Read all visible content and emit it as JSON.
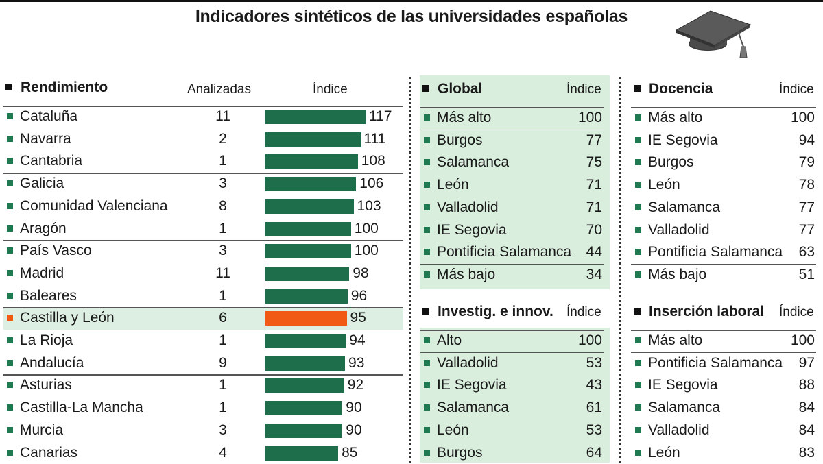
{
  "title": "Indicadores sintéticos de las universidades españolas",
  "rendimiento": {
    "header": "Rendimiento",
    "col_analizadas": "Analizadas",
    "col_indice": "Índice"
  },
  "chart_data": {
    "type": "bar",
    "orientation": "horizontal",
    "title": "Rendimiento",
    "categories": [
      "Cataluña",
      "Navarra",
      "Cantabria",
      "Galicia",
      "Comunidad Valenciana",
      "Aragón",
      "País Vasco",
      "Madrid",
      "Baleares",
      "Castilla y León",
      "La Rioja",
      "Andalucía",
      "Asturias",
      "Castilla-La Mancha",
      "Murcia",
      "Canarias"
    ],
    "analizadas": [
      "11",
      "2",
      "1",
      "3",
      "8",
      "1",
      "3",
      "11",
      "1",
      "6",
      "1",
      "9",
      "1",
      "1",
      "3",
      "4"
    ],
    "values": [
      117,
      111,
      108,
      106,
      103,
      100,
      100,
      98,
      96,
      95,
      94,
      93,
      92,
      90,
      90,
      85
    ],
    "highlight": "Castilla y León",
    "colors": {
      "bar": "#1f6e4b",
      "highlight_bar": "#f05a14",
      "row_highlight": "#dcefe2",
      "marker": "#1f7a52",
      "panel_bg": "#d9eedd"
    }
  },
  "global": {
    "header": "Global",
    "col": "Índice",
    "rows": [
      {
        "name": "Más alto",
        "value": "100"
      },
      {
        "name": "Burgos",
        "value": "77"
      },
      {
        "name": "Salamanca",
        "value": "75"
      },
      {
        "name": "León",
        "value": "71"
      },
      {
        "name": "Valladolid",
        "value": "71"
      },
      {
        "name": "IE Segovia",
        "value": "70"
      },
      {
        "name": "Pontificia Salamanca",
        "value": "44"
      },
      {
        "name": "Más bajo",
        "value": "34"
      }
    ]
  },
  "investig": {
    "header": "Investig. e innov.",
    "col": "Índice",
    "rows": [
      {
        "name": "Alto",
        "value": "100"
      },
      {
        "name": "Valladolid",
        "value": "53"
      },
      {
        "name": "IE Segovia",
        "value": "43"
      },
      {
        "name": "Salamanca",
        "value": "61"
      },
      {
        "name": "León",
        "value": "53"
      },
      {
        "name": "Burgos",
        "value": "64"
      }
    ]
  },
  "docencia": {
    "header": "Docencia",
    "col": "Índice",
    "rows": [
      {
        "name": "Más alto",
        "value": "100"
      },
      {
        "name": "IE Segovia",
        "value": "94"
      },
      {
        "name": "Burgos",
        "value": "79"
      },
      {
        "name": "León",
        "value": "78"
      },
      {
        "name": "Salamanca",
        "value": "77"
      },
      {
        "name": "Valladolid",
        "value": "77"
      },
      {
        "name": "Pontificia Salamanca",
        "value": "63"
      },
      {
        "name": "Más bajo",
        "value": "51"
      }
    ]
  },
  "insercion": {
    "header": "Inserción laboral",
    "col": "Índice",
    "rows": [
      {
        "name": "Más alto",
        "value": "100"
      },
      {
        "name": "Pontificia Salamanca",
        "value": "97"
      },
      {
        "name": "IE Segovia",
        "value": "88"
      },
      {
        "name": "Salamanca",
        "value": "84"
      },
      {
        "name": "Valladolid",
        "value": "84"
      },
      {
        "name": "León",
        "value": "83"
      }
    ]
  }
}
